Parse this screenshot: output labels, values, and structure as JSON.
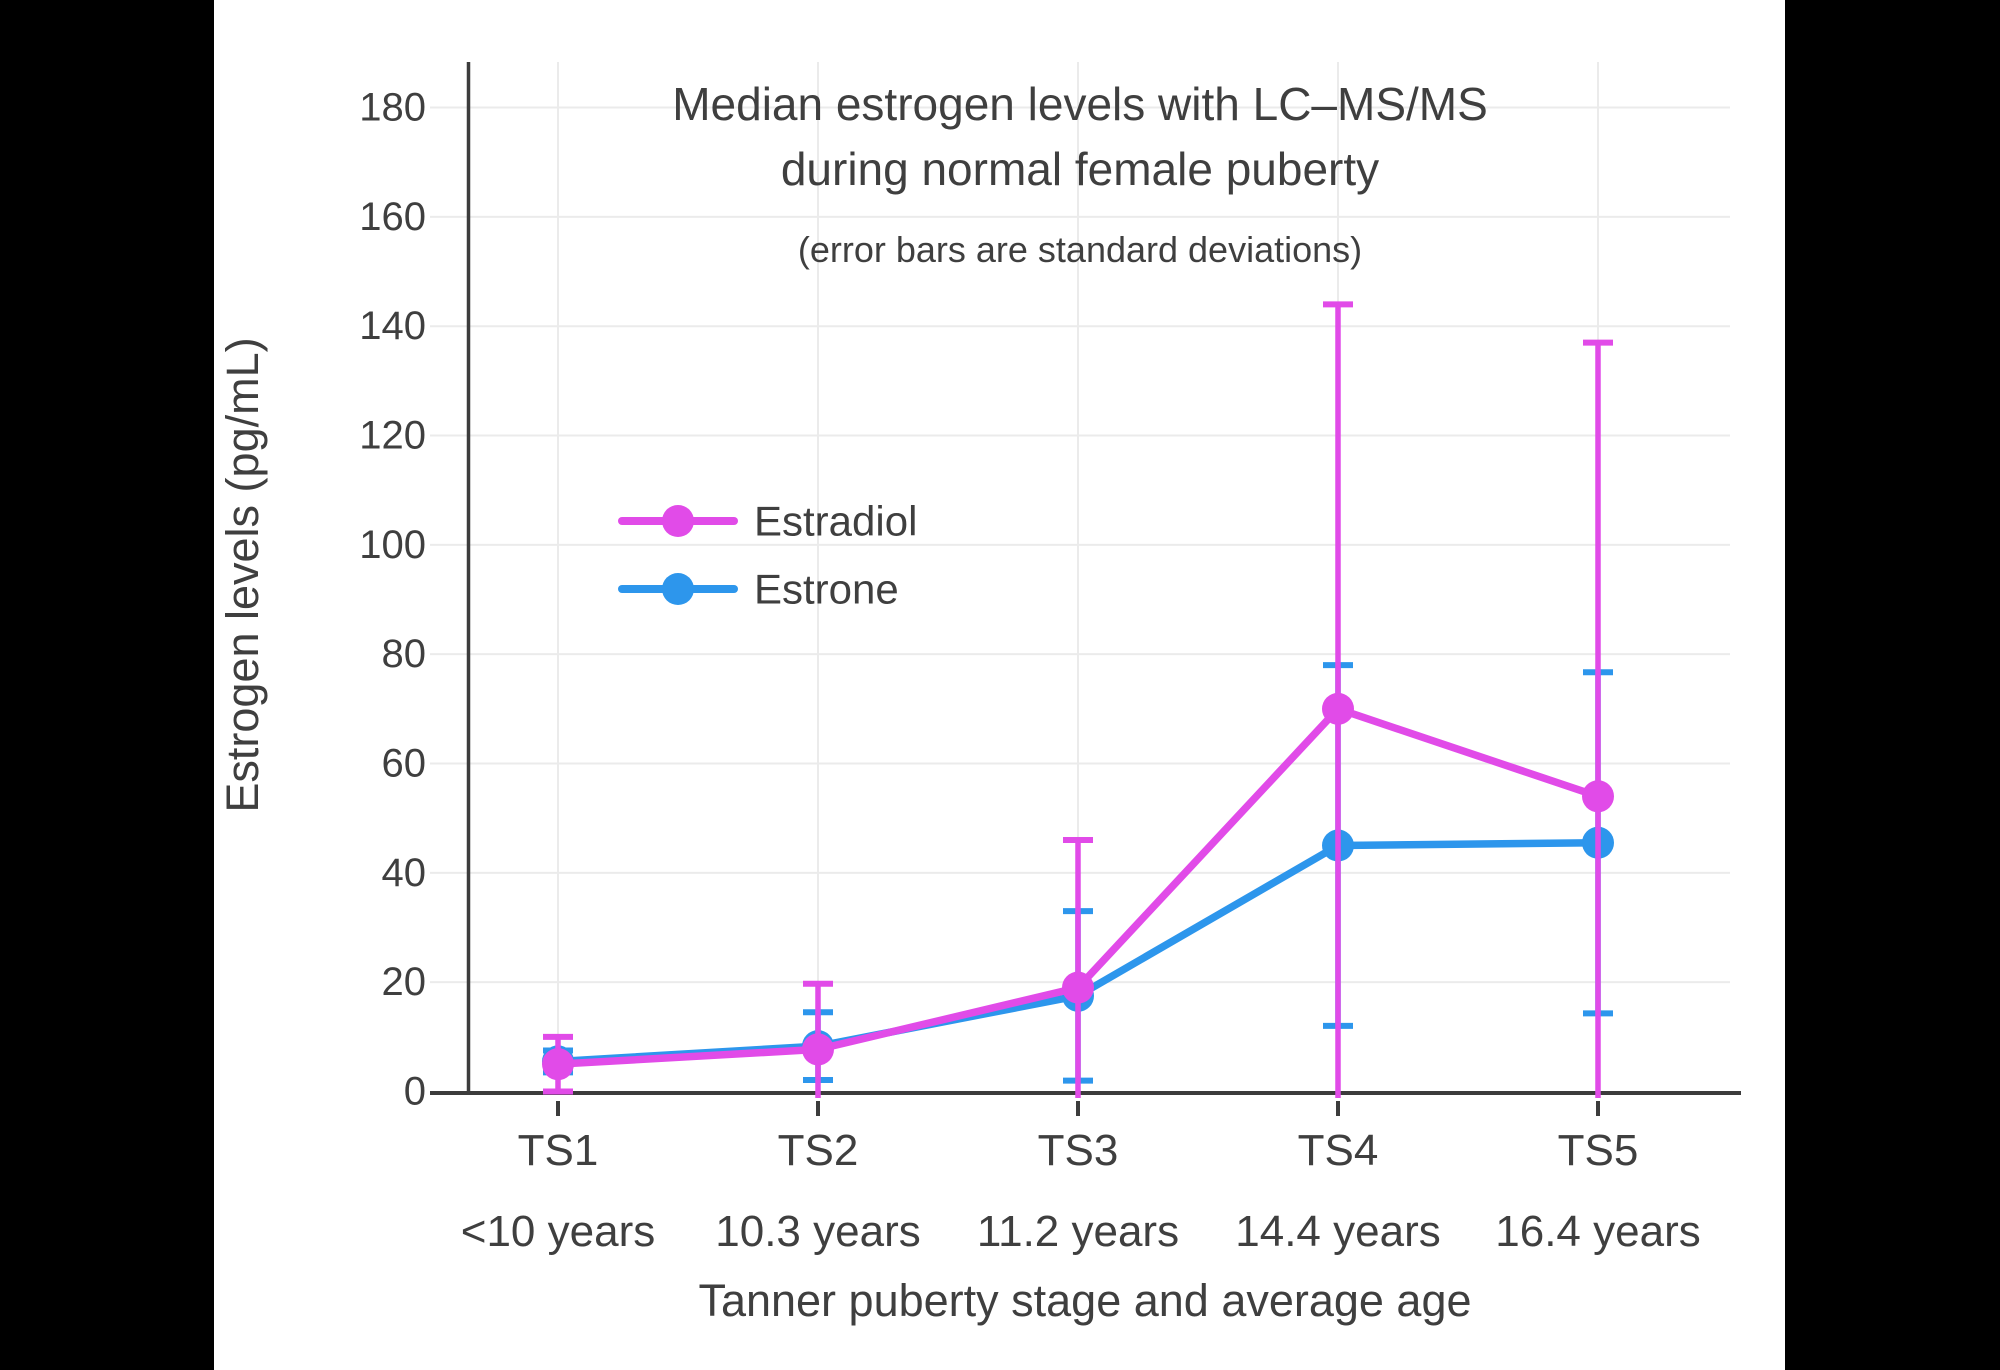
{
  "page": {
    "background": "#000000",
    "canvas_background": "#FFFFFF",
    "text_color": "#3F3F3F",
    "grid_color": "#EBEBEB",
    "axis_color": "#3C3C3C"
  },
  "title": {
    "line1": "Median estrogen levels with LC–MS/MS",
    "line2": "during normal female puberty",
    "subtitle": "(error bars are standard deviations)"
  },
  "axes": {
    "y": {
      "title": "Estrogen levels (pg/mL)",
      "ticks": [
        0,
        20,
        40,
        60,
        80,
        100,
        120,
        140,
        160,
        180
      ],
      "range": [
        0,
        188
      ]
    },
    "x": {
      "title": "Tanner puberty stage and average age",
      "categories": [
        "TS1",
        "TS2",
        "TS3",
        "TS4",
        "TS5"
      ],
      "ages": [
        "<10 years",
        "10.3 years",
        "11.2 years",
        "14.4 years",
        "16.4 years"
      ]
    }
  },
  "legend": [
    {
      "label": "Estradiol",
      "color": "#E14BE8"
    },
    {
      "label": "Estrone",
      "color": "#2D96EC"
    }
  ],
  "chart_data": {
    "type": "line",
    "title": "Median estrogen levels with LC–MS/MS during normal female puberty",
    "subtitle": "(error bars are standard deviations)",
    "xlabel": "Tanner puberty stage and average age",
    "ylabel": "Estrogen levels (pg/mL)",
    "categories": [
      "TS1",
      "TS2",
      "TS3",
      "TS4",
      "TS5"
    ],
    "category_ages": [
      "<10 years",
      "10.3 years",
      "11.2 years",
      "14.4 years",
      "16.4 years"
    ],
    "ylim": [
      0,
      188
    ],
    "ytick_step": 20,
    "grid": true,
    "error_bars": "standard deviations",
    "error_bars_clipped_at_zero": true,
    "legend_position": "inside-left-middle",
    "series": [
      {
        "name": "Estrone",
        "color": "#2D96EC",
        "values": [
          5.5,
          8.3,
          17.5,
          45,
          45.5
        ],
        "sd": [
          2,
          6.2,
          15.5,
          33,
          31.2
        ]
      },
      {
        "name": "Estradiol",
        "color": "#E14BE8",
        "values": [
          5,
          7.7,
          19,
          70,
          54
        ],
        "sd": [
          5,
          12,
          27,
          74,
          83
        ]
      }
    ]
  }
}
